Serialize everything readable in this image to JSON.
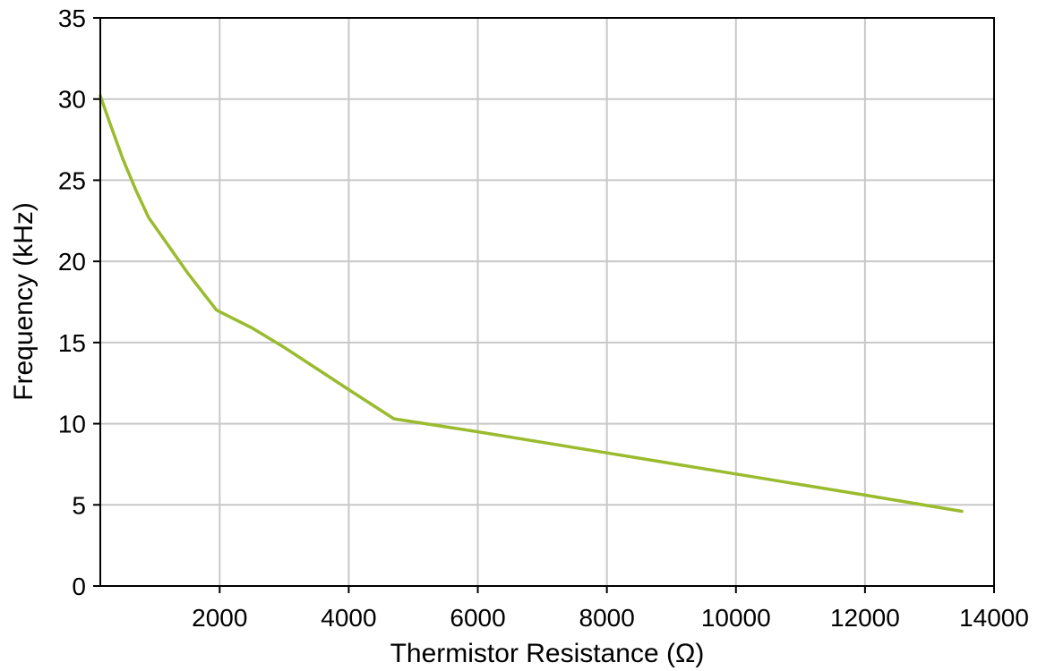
{
  "chart_data": {
    "type": "line",
    "title": "",
    "xlabel": "Thermistor Resistance (Ω)",
    "ylabel": "Frequency (kHz)",
    "xlim": [
      150,
      14000
    ],
    "ylim": [
      0,
      35
    ],
    "grid": true,
    "x_ticks": [
      2000,
      4000,
      6000,
      8000,
      10000,
      12000,
      14000
    ],
    "x_tick_labels": [
      "2000",
      "4000",
      "6000",
      "8000",
      "10000",
      "12000",
      "14000"
    ],
    "y_ticks": [
      0,
      5,
      10,
      15,
      20,
      25,
      30,
      35
    ],
    "y_tick_labels": [
      "0",
      "5",
      "10",
      "15",
      "20",
      "25",
      "30",
      "35"
    ],
    "series": [
      {
        "color": "#9bbb2f",
        "x": [
          150,
          300,
          500,
          700,
          900,
          1200,
          1500,
          1950,
          2500,
          3000,
          3500,
          4000,
          4700,
          6000,
          8000,
          10000,
          12000,
          13500
        ],
        "y": [
          30.2,
          28.5,
          26.3,
          24.4,
          22.7,
          21.0,
          19.3,
          17.0,
          15.9,
          14.7,
          13.4,
          12.1,
          10.3,
          9.5,
          8.2,
          6.9,
          5.6,
          4.6
        ]
      }
    ]
  }
}
